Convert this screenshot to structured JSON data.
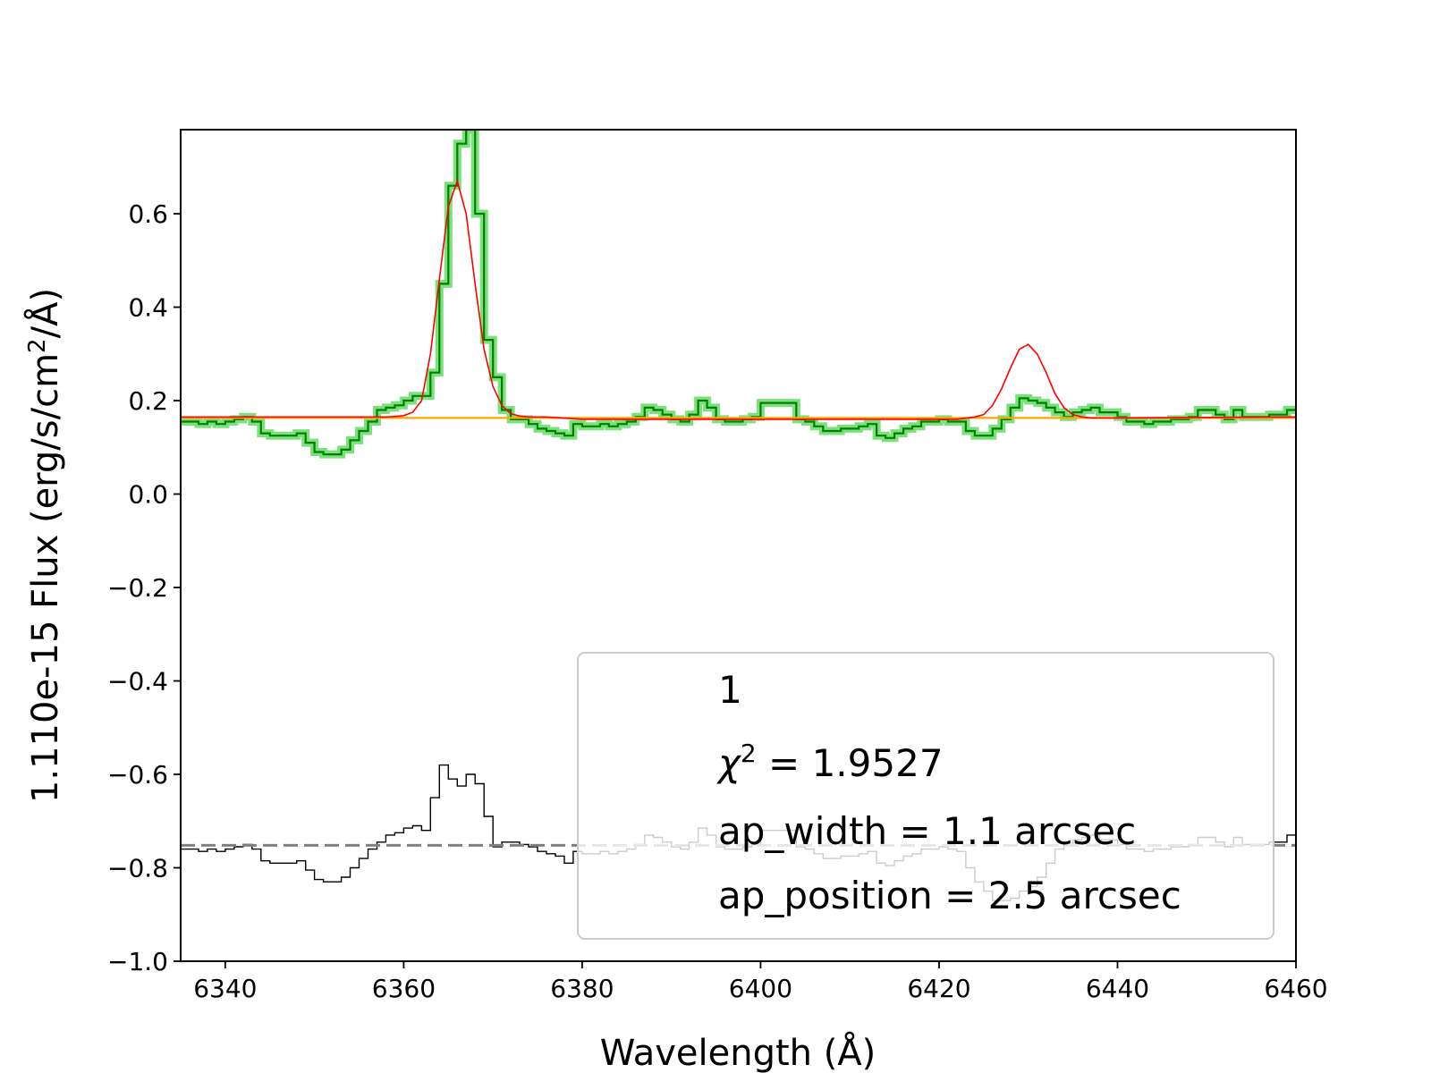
{
  "chart_data": {
    "type": "line",
    "xlabel": "Wavelength (Å)",
    "ylabel": "1.110e-15  Flux (erg/s/cm²/Å)",
    "ylabel_prefix": "1.110e-15  Flux (erg/s/cm",
    "ylabel_sup": "2",
    "ylabel_suffix": "/Å)",
    "xlim": [
      6335,
      6460
    ],
    "ylim": [
      -1.0,
      0.78
    ],
    "x_ticks": [
      6340,
      6360,
      6380,
      6400,
      6420,
      6440,
      6460
    ],
    "y_ticks": [
      0.6,
      0.4,
      0.2,
      0.0,
      -0.2,
      -0.4,
      -0.6,
      -0.8,
      -1.0
    ],
    "y_tick_labels": [
      "0.6",
      "0.4",
      "0.2",
      "0.0",
      "−0.2",
      "−0.4",
      "−0.6",
      "−0.8",
      "−1.0"
    ],
    "grid": false,
    "legend_position": "lower-right",
    "legend": {
      "line1": "1",
      "chi_symbol": "χ",
      "chi_sup": "2",
      "chi_value": " = 1.9527",
      "line3": "ap_width = 1.1 arcsec",
      "line4": "ap_position = 2.5 arcsec"
    },
    "colors": {
      "data": "#008000",
      "data_halo": "#7CE07C",
      "model": "#ff0000",
      "continuum": "#ffa500",
      "residual": "#000000",
      "residual_ref": "#808080"
    },
    "series": [
      {
        "role": "spectrum",
        "style": "step",
        "x": [
          6335,
          6336,
          6337,
          6338,
          6339,
          6340,
          6341,
          6342,
          6343,
          6344,
          6345,
          6346,
          6347,
          6348,
          6349,
          6350,
          6351,
          6352,
          6353,
          6354,
          6355,
          6356,
          6357,
          6358,
          6359,
          6360,
          6361,
          6362,
          6363,
          6364,
          6365,
          6366,
          6367,
          6368,
          6369,
          6370,
          6371,
          6372,
          6373,
          6374,
          6375,
          6376,
          6377,
          6378,
          6379,
          6380,
          6381,
          6382,
          6383,
          6384,
          6385,
          6386,
          6387,
          6388,
          6389,
          6390,
          6391,
          6392,
          6393,
          6394,
          6395,
          6396,
          6397,
          6398,
          6399,
          6400,
          6401,
          6402,
          6403,
          6404,
          6405,
          6406,
          6407,
          6408,
          6409,
          6410,
          6411,
          6412,
          6413,
          6414,
          6415,
          6416,
          6417,
          6418,
          6419,
          6420,
          6421,
          6422,
          6423,
          6424,
          6425,
          6426,
          6427,
          6428,
          6429,
          6430,
          6431,
          6432,
          6433,
          6434,
          6435,
          6436,
          6437,
          6438,
          6439,
          6440,
          6441,
          6442,
          6443,
          6444,
          6445,
          6446,
          6447,
          6448,
          6449,
          6450,
          6451,
          6452,
          6453,
          6454,
          6455,
          6456,
          6457,
          6458,
          6459
        ],
        "y": [
          0.155,
          0.155,
          0.15,
          0.155,
          0.15,
          0.155,
          0.16,
          0.165,
          0.155,
          0.13,
          0.125,
          0.125,
          0.125,
          0.13,
          0.11,
          0.09,
          0.085,
          0.085,
          0.095,
          0.115,
          0.135,
          0.155,
          0.18,
          0.185,
          0.19,
          0.2,
          0.21,
          0.21,
          0.26,
          0.45,
          0.66,
          0.75,
          0.78,
          0.6,
          0.33,
          0.25,
          0.18,
          0.16,
          0.16,
          0.15,
          0.14,
          0.135,
          0.13,
          0.125,
          0.15,
          0.145,
          0.145,
          0.15,
          0.145,
          0.15,
          0.155,
          0.165,
          0.185,
          0.18,
          0.17,
          0.16,
          0.155,
          0.17,
          0.2,
          0.185,
          0.16,
          0.155,
          0.155,
          0.16,
          0.165,
          0.195,
          0.195,
          0.195,
          0.195,
          0.16,
          0.155,
          0.145,
          0.135,
          0.135,
          0.14,
          0.14,
          0.145,
          0.15,
          0.125,
          0.12,
          0.13,
          0.14,
          0.145,
          0.155,
          0.155,
          0.16,
          0.155,
          0.155,
          0.135,
          0.125,
          0.125,
          0.14,
          0.16,
          0.185,
          0.205,
          0.2,
          0.195,
          0.185,
          0.175,
          0.165,
          0.175,
          0.18,
          0.185,
          0.175,
          0.175,
          0.165,
          0.155,
          0.155,
          0.15,
          0.155,
          0.155,
          0.16,
          0.16,
          0.165,
          0.18,
          0.18,
          0.17,
          0.16,
          0.18,
          0.165,
          0.165,
          0.165,
          0.17,
          0.17,
          0.18
        ]
      },
      {
        "role": "model",
        "style": "line",
        "x": [
          6335,
          6355,
          6357,
          6358,
          6359,
          6360,
          6361,
          6362,
          6363,
          6364,
          6365,
          6366,
          6367,
          6368,
          6369,
          6370,
          6371,
          6372,
          6373,
          6374,
          6375,
          6376,
          6380,
          6420,
          6422,
          6424,
          6425,
          6426,
          6427,
          6428,
          6429,
          6430,
          6431,
          6432,
          6433,
          6434,
          6435,
          6436,
          6437,
          6440,
          6460
        ],
        "y": [
          0.165,
          0.165,
          0.165,
          0.165,
          0.166,
          0.168,
          0.175,
          0.2,
          0.3,
          0.46,
          0.615,
          0.67,
          0.6,
          0.45,
          0.31,
          0.23,
          0.19,
          0.172,
          0.167,
          0.165,
          0.165,
          0.165,
          0.16,
          0.16,
          0.16,
          0.165,
          0.17,
          0.19,
          0.225,
          0.27,
          0.31,
          0.32,
          0.3,
          0.26,
          0.215,
          0.185,
          0.17,
          0.165,
          0.163,
          0.163,
          0.165
        ]
      },
      {
        "role": "continuum",
        "style": "line",
        "x": [
          6335,
          6460
        ],
        "y": [
          0.163,
          0.163
        ]
      },
      {
        "role": "residual",
        "style": "step",
        "x": [
          6335,
          6336,
          6337,
          6338,
          6339,
          6340,
          6341,
          6342,
          6343,
          6344,
          6345,
          6346,
          6347,
          6348,
          6349,
          6350,
          6351,
          6352,
          6353,
          6354,
          6355,
          6356,
          6357,
          6358,
          6359,
          6360,
          6361,
          6362,
          6363,
          6364,
          6365,
          6366,
          6367,
          6368,
          6369,
          6370,
          6371,
          6372,
          6373,
          6374,
          6375,
          6376,
          6377,
          6378,
          6379,
          6380,
          6381,
          6382,
          6383,
          6384,
          6385,
          6386,
          6387,
          6388,
          6389,
          6390,
          6391,
          6392,
          6393,
          6394,
          6395,
          6396,
          6397,
          6398,
          6399,
          6400,
          6401,
          6402,
          6403,
          6404,
          6405,
          6406,
          6407,
          6408,
          6409,
          6410,
          6411,
          6412,
          6413,
          6414,
          6415,
          6416,
          6417,
          6418,
          6419,
          6420,
          6421,
          6422,
          6423,
          6424,
          6425,
          6426,
          6427,
          6428,
          6429,
          6430,
          6431,
          6432,
          6433,
          6434,
          6435,
          6436,
          6437,
          6438,
          6439,
          6440,
          6441,
          6442,
          6443,
          6444,
          6445,
          6446,
          6447,
          6448,
          6449,
          6450,
          6451,
          6452,
          6453,
          6454,
          6455,
          6456,
          6457,
          6458,
          6459
        ],
        "y": [
          -0.76,
          -0.76,
          -0.765,
          -0.76,
          -0.765,
          -0.76,
          -0.755,
          -0.75,
          -0.76,
          -0.785,
          -0.79,
          -0.79,
          -0.79,
          -0.785,
          -0.805,
          -0.825,
          -0.83,
          -0.83,
          -0.82,
          -0.8,
          -0.78,
          -0.76,
          -0.745,
          -0.73,
          -0.725,
          -0.715,
          -0.71,
          -0.72,
          -0.65,
          -0.58,
          -0.61,
          -0.625,
          -0.6,
          -0.62,
          -0.69,
          -0.755,
          -0.745,
          -0.745,
          -0.75,
          -0.755,
          -0.765,
          -0.77,
          -0.775,
          -0.79,
          -0.765,
          -0.77,
          -0.77,
          -0.765,
          -0.77,
          -0.765,
          -0.76,
          -0.75,
          -0.73,
          -0.735,
          -0.745,
          -0.755,
          -0.76,
          -0.745,
          -0.715,
          -0.73,
          -0.755,
          -0.76,
          -0.76,
          -0.755,
          -0.75,
          -0.72,
          -0.72,
          -0.72,
          -0.72,
          -0.755,
          -0.76,
          -0.77,
          -0.78,
          -0.78,
          -0.775,
          -0.775,
          -0.77,
          -0.765,
          -0.79,
          -0.795,
          -0.785,
          -0.775,
          -0.77,
          -0.76,
          -0.76,
          -0.755,
          -0.76,
          -0.765,
          -0.8,
          -0.83,
          -0.85,
          -0.87,
          -0.87,
          -0.865,
          -0.85,
          -0.84,
          -0.82,
          -0.79,
          -0.76,
          -0.75,
          -0.74,
          -0.735,
          -0.73,
          -0.74,
          -0.74,
          -0.75,
          -0.76,
          -0.76,
          -0.765,
          -0.76,
          -0.76,
          -0.755,
          -0.755,
          -0.75,
          -0.735,
          -0.735,
          -0.745,
          -0.755,
          -0.735,
          -0.75,
          -0.75,
          -0.75,
          -0.745,
          -0.745,
          -0.73
        ]
      },
      {
        "role": "residual_reference",
        "style": "dashed",
        "x": [
          6335,
          6460
        ],
        "y": [
          -0.752,
          -0.752
        ]
      }
    ]
  }
}
